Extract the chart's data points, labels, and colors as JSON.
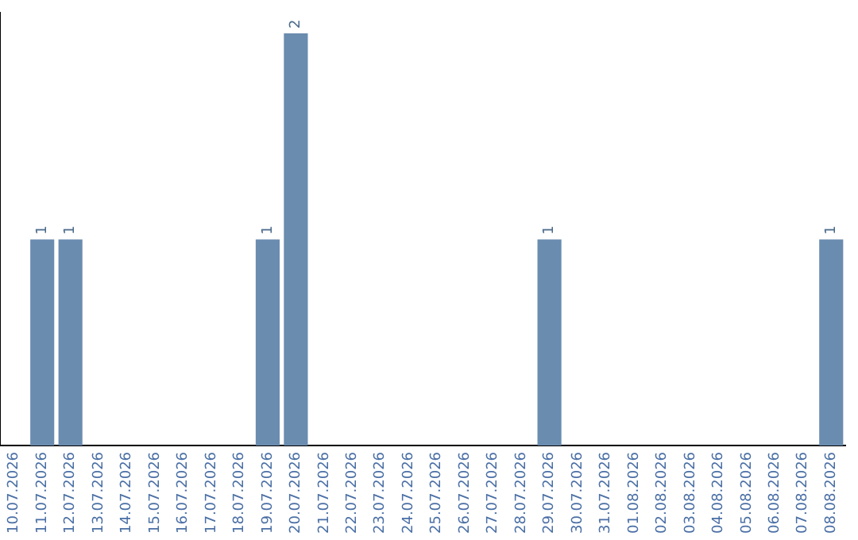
{
  "chart_data": {
    "type": "bar",
    "categories": [
      "10.07.2026",
      "11.07.2026",
      "12.07.2026",
      "13.07.2026",
      "14.07.2026",
      "15.07.2026",
      "16.07.2026",
      "17.07.2026",
      "18.07.2026",
      "19.07.2026",
      "20.07.2026",
      "21.07.2026",
      "22.07.2026",
      "23.07.2026",
      "24.07.2026",
      "25.07.2026",
      "26.07.2026",
      "27.07.2026",
      "28.07.2026",
      "29.07.2026",
      "30.07.2026",
      "31.07.2026",
      "01.08.2026",
      "02.08.2026",
      "03.08.2026",
      "04.08.2026",
      "05.08.2026",
      "06.08.2026",
      "07.08.2026",
      "08.08.2026"
    ],
    "values": [
      0,
      1,
      1,
      0,
      0,
      0,
      0,
      0,
      0,
      1,
      2,
      0,
      0,
      0,
      0,
      0,
      0,
      0,
      0,
      1,
      0,
      0,
      0,
      0,
      0,
      0,
      0,
      0,
      0,
      1
    ],
    "value_labels": [
      null,
      "1",
      "1",
      null,
      null,
      null,
      null,
      null,
      null,
      "1",
      "2",
      null,
      null,
      null,
      null,
      null,
      null,
      null,
      null,
      "1",
      null,
      null,
      null,
      null,
      null,
      null,
      null,
      null,
      null,
      "1"
    ],
    "color": "#6a8caf",
    "ylim": [
      0,
      2.1
    ],
    "tick_labels": "x",
    "grid": false,
    "legend": false
  }
}
